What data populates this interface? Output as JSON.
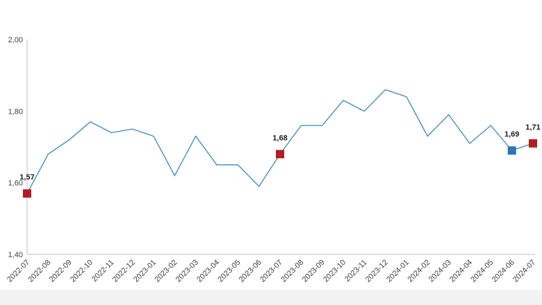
{
  "chart_data": {
    "type": "line",
    "title": "",
    "xlabel": "",
    "ylabel": "",
    "ylim": [
      1.4,
      2.0
    ],
    "y_ticks": [
      "1,40",
      "1,60",
      "1,80",
      "2,00"
    ],
    "y_tick_values": [
      1.4,
      1.6,
      1.8,
      2.0
    ],
    "grid": false,
    "categories": [
      "2022-07",
      "2022-08",
      "2022-09",
      "2022-10",
      "2022-11",
      "2022-12",
      "2023-01",
      "2023-02",
      "2023-03",
      "2023-04",
      "2023-05",
      "2023-06",
      "2023-07",
      "2023-08",
      "2023-09",
      "2023-10",
      "2023-11",
      "2023-12",
      "2024-01",
      "2024-02",
      "2024-03",
      "2024-04",
      "2024-05",
      "2024-06",
      "2024-07"
    ],
    "series": [
      {
        "values": [
          1.57,
          1.68,
          1.72,
          1.77,
          1.74,
          1.75,
          1.73,
          1.62,
          1.73,
          1.65,
          1.65,
          1.59,
          1.68,
          1.76,
          1.76,
          1.83,
          1.8,
          1.86,
          1.84,
          1.73,
          1.79,
          1.71,
          1.76,
          1.69,
          1.71
        ],
        "color": "#3a86b4"
      }
    ],
    "highlighted_points": [
      {
        "index": 0,
        "label": "1,57",
        "color": "#b01c22"
      },
      {
        "index": 12,
        "label": "1,68",
        "color": "#b01c22"
      },
      {
        "index": 23,
        "label": "1,69",
        "color": "#2e75b6"
      },
      {
        "index": 24,
        "label": "1,71",
        "color": "#b01c22"
      }
    ],
    "axis_color": "#bfbfbf",
    "footer_color": "#f2f2f2"
  }
}
